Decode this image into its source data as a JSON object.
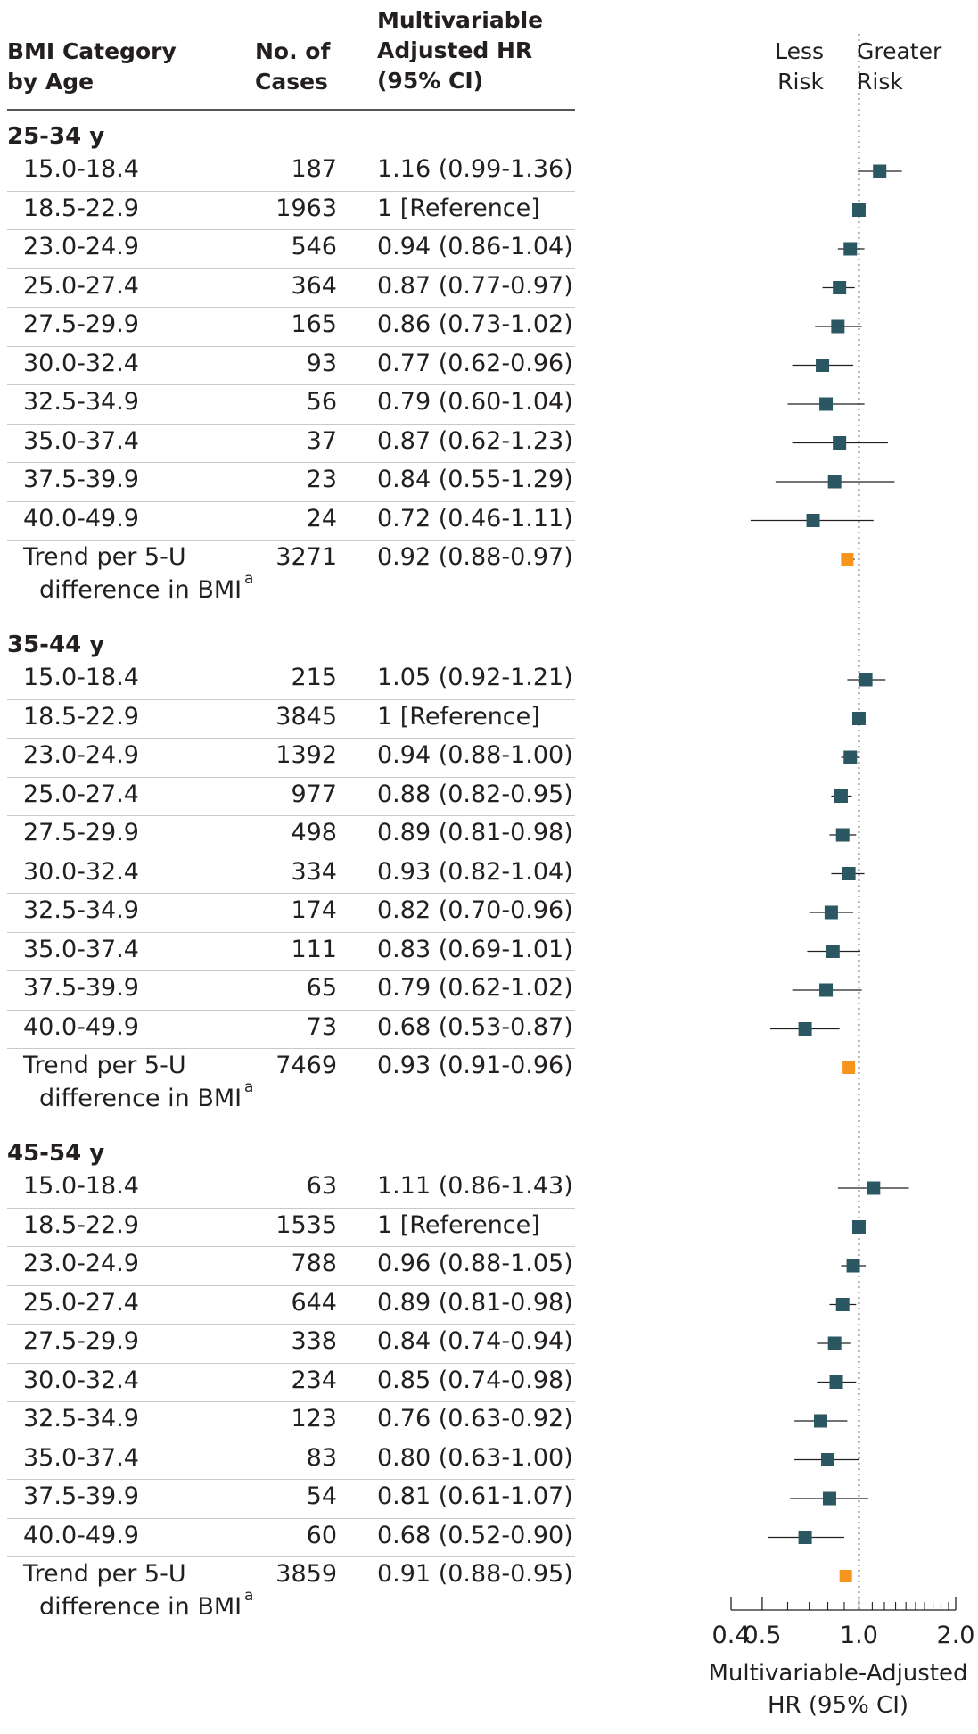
{
  "header": {
    "col1_line1": "BMI Category",
    "col1_line2": "by Age",
    "col2_line1": "No. of",
    "col2_line2": "Cases",
    "col3_line1": "Multivariable",
    "col3_line2": "Adjusted HR",
    "col3_line3": "(95% CI)",
    "less_line1": "Less",
    "less_line2": "Risk",
    "greater_line1": "Greater",
    "greater_line2": "Risk"
  },
  "colors": {
    "point": "#2b5763",
    "trend": "#f7941d",
    "ci_line": "#231f20"
  },
  "chart_data": {
    "type": "forest",
    "xscale": "log",
    "xlim": [
      0.4,
      2.0
    ],
    "reference_line": 1.0,
    "xticks": [
      "0.4",
      "0.5",
      "1.0",
      "2.0"
    ],
    "xlabel_line1": "Multivariable-Adjusted",
    "xlabel_line2": "HR (95% CI)",
    "groups": [
      {
        "label": "25-34 y",
        "rows": [
          {
            "cat": "15.0-18.4",
            "cases": "187",
            "text": "1.16 (0.99-1.36)",
            "hr": 1.16,
            "lo": 0.99,
            "hi": 1.36
          },
          {
            "cat": "18.5-22.9",
            "cases": "1963",
            "text": "1 [Reference]",
            "hr": 1.0,
            "lo": 1.0,
            "hi": 1.0
          },
          {
            "cat": "23.0-24.9",
            "cases": "546",
            "text": "0.94 (0.86-1.04)",
            "hr": 0.94,
            "lo": 0.86,
            "hi": 1.04
          },
          {
            "cat": "25.0-27.4",
            "cases": "364",
            "text": "0.87 (0.77-0.97)",
            "hr": 0.87,
            "lo": 0.77,
            "hi": 0.97
          },
          {
            "cat": "27.5-29.9",
            "cases": "165",
            "text": "0.86 (0.73-1.02)",
            "hr": 0.86,
            "lo": 0.73,
            "hi": 1.02
          },
          {
            "cat": "30.0-32.4",
            "cases": "93",
            "text": "0.77 (0.62-0.96)",
            "hr": 0.77,
            "lo": 0.62,
            "hi": 0.96
          },
          {
            "cat": "32.5-34.9",
            "cases": "56",
            "text": "0.79 (0.60-1.04)",
            "hr": 0.79,
            "lo": 0.6,
            "hi": 1.04
          },
          {
            "cat": "35.0-37.4",
            "cases": "37",
            "text": "0.87 (0.62-1.23)",
            "hr": 0.87,
            "lo": 0.62,
            "hi": 1.23
          },
          {
            "cat": "37.5-39.9",
            "cases": "23",
            "text": "0.84 (0.55-1.29)",
            "hr": 0.84,
            "lo": 0.55,
            "hi": 1.29
          },
          {
            "cat": "40.0-49.9",
            "cases": "24",
            "text": "0.72 (0.46-1.11)",
            "hr": 0.72,
            "lo": 0.46,
            "hi": 1.11
          }
        ],
        "trend": {
          "line1": "Trend per 5-U",
          "line2": "difference in BMI",
          "sup": "a",
          "cases": "3271",
          "text": "0.92 (0.88-0.97)",
          "hr": 0.92,
          "lo": 0.88,
          "hi": 0.97
        }
      },
      {
        "label": "35-44 y",
        "rows": [
          {
            "cat": "15.0-18.4",
            "cases": "215",
            "text": "1.05 (0.92-1.21)",
            "hr": 1.05,
            "lo": 0.92,
            "hi": 1.21
          },
          {
            "cat": "18.5-22.9",
            "cases": "3845",
            "text": "1 [Reference]",
            "hr": 1.0,
            "lo": 1.0,
            "hi": 1.0
          },
          {
            "cat": "23.0-24.9",
            "cases": "1392",
            "text": "0.94 (0.88-1.00)",
            "hr": 0.94,
            "lo": 0.88,
            "hi": 1.0
          },
          {
            "cat": "25.0-27.4",
            "cases": "977",
            "text": "0.88 (0.82-0.95)",
            "hr": 0.88,
            "lo": 0.82,
            "hi": 0.95
          },
          {
            "cat": "27.5-29.9",
            "cases": "498",
            "text": "0.89 (0.81-0.98)",
            "hr": 0.89,
            "lo": 0.81,
            "hi": 0.98
          },
          {
            "cat": "30.0-32.4",
            "cases": "334",
            "text": "0.93 (0.82-1.04)",
            "hr": 0.93,
            "lo": 0.82,
            "hi": 1.04
          },
          {
            "cat": "32.5-34.9",
            "cases": "174",
            "text": "0.82 (0.70-0.96)",
            "hr": 0.82,
            "lo": 0.7,
            "hi": 0.96
          },
          {
            "cat": "35.0-37.4",
            "cases": "111",
            "text": "0.83 (0.69-1.01)",
            "hr": 0.83,
            "lo": 0.69,
            "hi": 1.01
          },
          {
            "cat": "37.5-39.9",
            "cases": "65",
            "text": "0.79 (0.62-1.02)",
            "hr": 0.79,
            "lo": 0.62,
            "hi": 1.02
          },
          {
            "cat": "40.0-49.9",
            "cases": "73",
            "text": "0.68 (0.53-0.87)",
            "hr": 0.68,
            "lo": 0.53,
            "hi": 0.87
          }
        ],
        "trend": {
          "line1": "Trend per 5-U",
          "line2": "difference in BMI",
          "sup": "a",
          "cases": "7469",
          "text": "0.93 (0.91-0.96)",
          "hr": 0.93,
          "lo": 0.91,
          "hi": 0.96
        }
      },
      {
        "label": "45-54 y",
        "rows": [
          {
            "cat": "15.0-18.4",
            "cases": "63",
            "text": "1.11 (0.86-1.43)",
            "hr": 1.11,
            "lo": 0.86,
            "hi": 1.43
          },
          {
            "cat": "18.5-22.9",
            "cases": "1535",
            "text": "1 [Reference]",
            "hr": 1.0,
            "lo": 1.0,
            "hi": 1.0
          },
          {
            "cat": "23.0-24.9",
            "cases": "788",
            "text": "0.96 (0.88-1.05)",
            "hr": 0.96,
            "lo": 0.88,
            "hi": 1.05
          },
          {
            "cat": "25.0-27.4",
            "cases": "644",
            "text": "0.89 (0.81-0.98)",
            "hr": 0.89,
            "lo": 0.81,
            "hi": 0.98
          },
          {
            "cat": "27.5-29.9",
            "cases": "338",
            "text": "0.84 (0.74-0.94)",
            "hr": 0.84,
            "lo": 0.74,
            "hi": 0.94
          },
          {
            "cat": "30.0-32.4",
            "cases": "234",
            "text": "0.85 (0.74-0.98)",
            "hr": 0.85,
            "lo": 0.74,
            "hi": 0.98
          },
          {
            "cat": "32.5-34.9",
            "cases": "123",
            "text": "0.76 (0.63-0.92)",
            "hr": 0.76,
            "lo": 0.63,
            "hi": 0.92
          },
          {
            "cat": "35.0-37.4",
            "cases": "83",
            "text": "0.80 (0.63-1.00)",
            "hr": 0.8,
            "lo": 0.63,
            "hi": 1.0
          },
          {
            "cat": "37.5-39.9",
            "cases": "54",
            "text": "0.81 (0.61-1.07)",
            "hr": 0.81,
            "lo": 0.61,
            "hi": 1.07
          },
          {
            "cat": "40.0-49.9",
            "cases": "60",
            "text": "0.68 (0.52-0.90)",
            "hr": 0.68,
            "lo": 0.52,
            "hi": 0.9
          }
        ],
        "trend": {
          "line1": "Trend per 5-U",
          "line2": "difference in BMI",
          "sup": "a",
          "cases": "3859",
          "text": "0.91 (0.88-0.95)",
          "hr": 0.91,
          "lo": 0.88,
          "hi": 0.95
        }
      }
    ]
  }
}
